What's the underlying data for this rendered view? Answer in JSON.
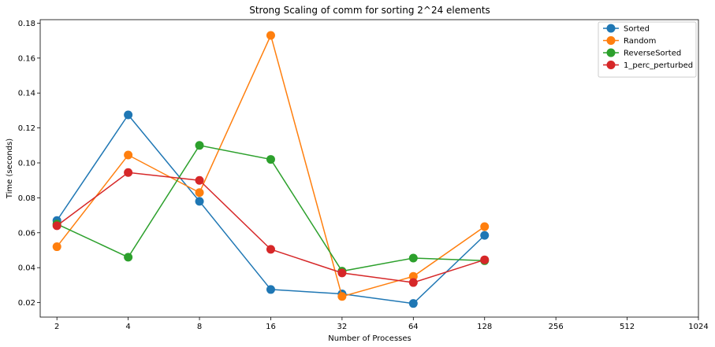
{
  "chart_data": {
    "type": "line",
    "title": "Strong Scaling of comm for sorting 2^24 elements",
    "xlabel": "Number of Processes",
    "ylabel": "Time (seconds)",
    "x_scale": "log2",
    "x_ticks": [
      2,
      4,
      8,
      16,
      32,
      64,
      128,
      256,
      512,
      1024
    ],
    "x_tick_labels": [
      "2",
      "4",
      "8",
      "16",
      "32",
      "64",
      "128",
      "256",
      "512",
      "1024"
    ],
    "y_ticks": [
      0.02,
      0.04,
      0.06,
      0.08,
      0.1,
      0.12,
      0.14,
      0.16,
      0.18
    ],
    "y_tick_labels": [
      "0.02",
      "0.04",
      "0.06",
      "0.08",
      "0.10",
      "0.12",
      "0.14",
      "0.16",
      "0.18"
    ],
    "xlim": [
      1.7,
      1024
    ],
    "ylim": [
      0.0117,
      0.182
    ],
    "grid": false,
    "legend_position": "top-right",
    "series": [
      {
        "name": "Sorted",
        "color": "#1f77b4",
        "x": [
          2,
          4,
          8,
          16,
          32,
          64,
          128
        ],
        "values": [
          0.067,
          0.1275,
          0.078,
          0.0275,
          0.025,
          0.0195,
          0.0585
        ]
      },
      {
        "name": "Random",
        "color": "#ff7f0e",
        "x": [
          2,
          4,
          8,
          16,
          32,
          64,
          128
        ],
        "values": [
          0.052,
          0.1045,
          0.083,
          0.173,
          0.0235,
          0.035,
          0.0635
        ]
      },
      {
        "name": "ReverseSorted",
        "color": "#2ca02c",
        "x": [
          2,
          4,
          8,
          16,
          32,
          64,
          128
        ],
        "values": [
          0.065,
          0.046,
          0.11,
          0.102,
          0.038,
          0.0455,
          0.044
        ]
      },
      {
        "name": "1_perc_perturbed",
        "color": "#d62728",
        "x": [
          2,
          4,
          8,
          16,
          32,
          64,
          128
        ],
        "values": [
          0.064,
          0.0945,
          0.09,
          0.0505,
          0.037,
          0.0315,
          0.0445
        ]
      }
    ]
  }
}
